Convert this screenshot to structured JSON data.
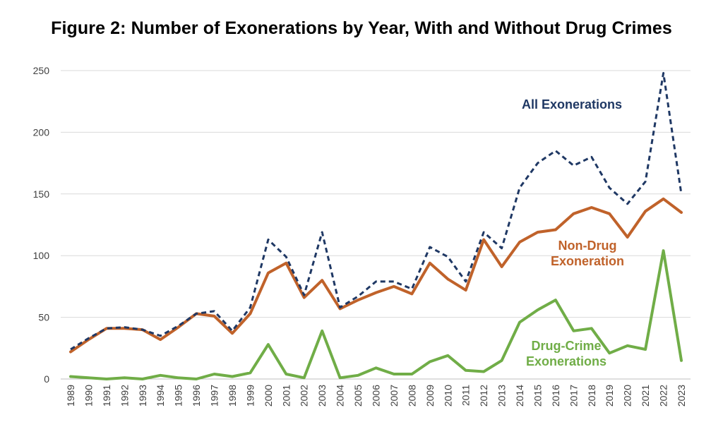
{
  "chart_data": {
    "type": "line",
    "title": "Figure 2:  Number of Exonerations by Year, With and Without Drug Crimes",
    "xlabel": "",
    "ylabel": "",
    "ylim": [
      0,
      250
    ],
    "yticks": [
      0,
      50,
      100,
      150,
      200,
      250
    ],
    "grid": "horizontal",
    "legend": "none (inline annotations)",
    "x": [
      "1989",
      "1990",
      "1991",
      "1992",
      "1993",
      "1994",
      "1995",
      "1996",
      "1997",
      "1998",
      "1999",
      "2000",
      "2001",
      "2002",
      "2003",
      "2004",
      "2005",
      "2006",
      "2007",
      "2008",
      "2009",
      "2010",
      "2011",
      "2012",
      "2013",
      "2014",
      "2015",
      "2016",
      "2017",
      "2018",
      "2019",
      "2020",
      "2021",
      "2022",
      "2023"
    ],
    "series": [
      {
        "name": "All Exonerations",
        "color": "#1f3864",
        "style": "dashed",
        "values": [
          24,
          33,
          41,
          42,
          40,
          35,
          43,
          53,
          55,
          39,
          58,
          113,
          99,
          68,
          119,
          58,
          67,
          79,
          79,
          73,
          107,
          99,
          79,
          119,
          106,
          155,
          175,
          185,
          173,
          180,
          155,
          142,
          160,
          248,
          150
        ]
      },
      {
        "name": "Non-Drug Exoneration",
        "color": "#c0622a",
        "style": "solid",
        "values": [
          22,
          32,
          41,
          41,
          40,
          32,
          42,
          53,
          51,
          37,
          53,
          86,
          94,
          66,
          80,
          57,
          64,
          70,
          75,
          69,
          94,
          81,
          72,
          113,
          91,
          111,
          119,
          121,
          134,
          139,
          134,
          115,
          136,
          146,
          135
        ]
      },
      {
        "name": "Drug-Crime Exonerations",
        "color": "#70ad47",
        "style": "solid",
        "values": [
          2,
          1,
          0,
          1,
          0,
          3,
          1,
          0,
          4,
          2,
          5,
          28,
          4,
          1,
          39,
          1,
          3,
          9,
          4,
          4,
          14,
          19,
          7,
          6,
          15,
          46,
          56,
          64,
          39,
          41,
          21,
          27,
          24,
          104,
          15
        ]
      }
    ],
    "annotations": [
      {
        "text_lines": [
          "All Exonerations"
        ],
        "series": "All Exonerations"
      },
      {
        "text_lines": [
          "Non-Drug",
          "Exoneration"
        ],
        "series": "Non-Drug Exoneration"
      },
      {
        "text_lines": [
          "Drug-Crime",
          "Exonerations"
        ],
        "series": "Drug-Crime Exonerations"
      }
    ]
  }
}
